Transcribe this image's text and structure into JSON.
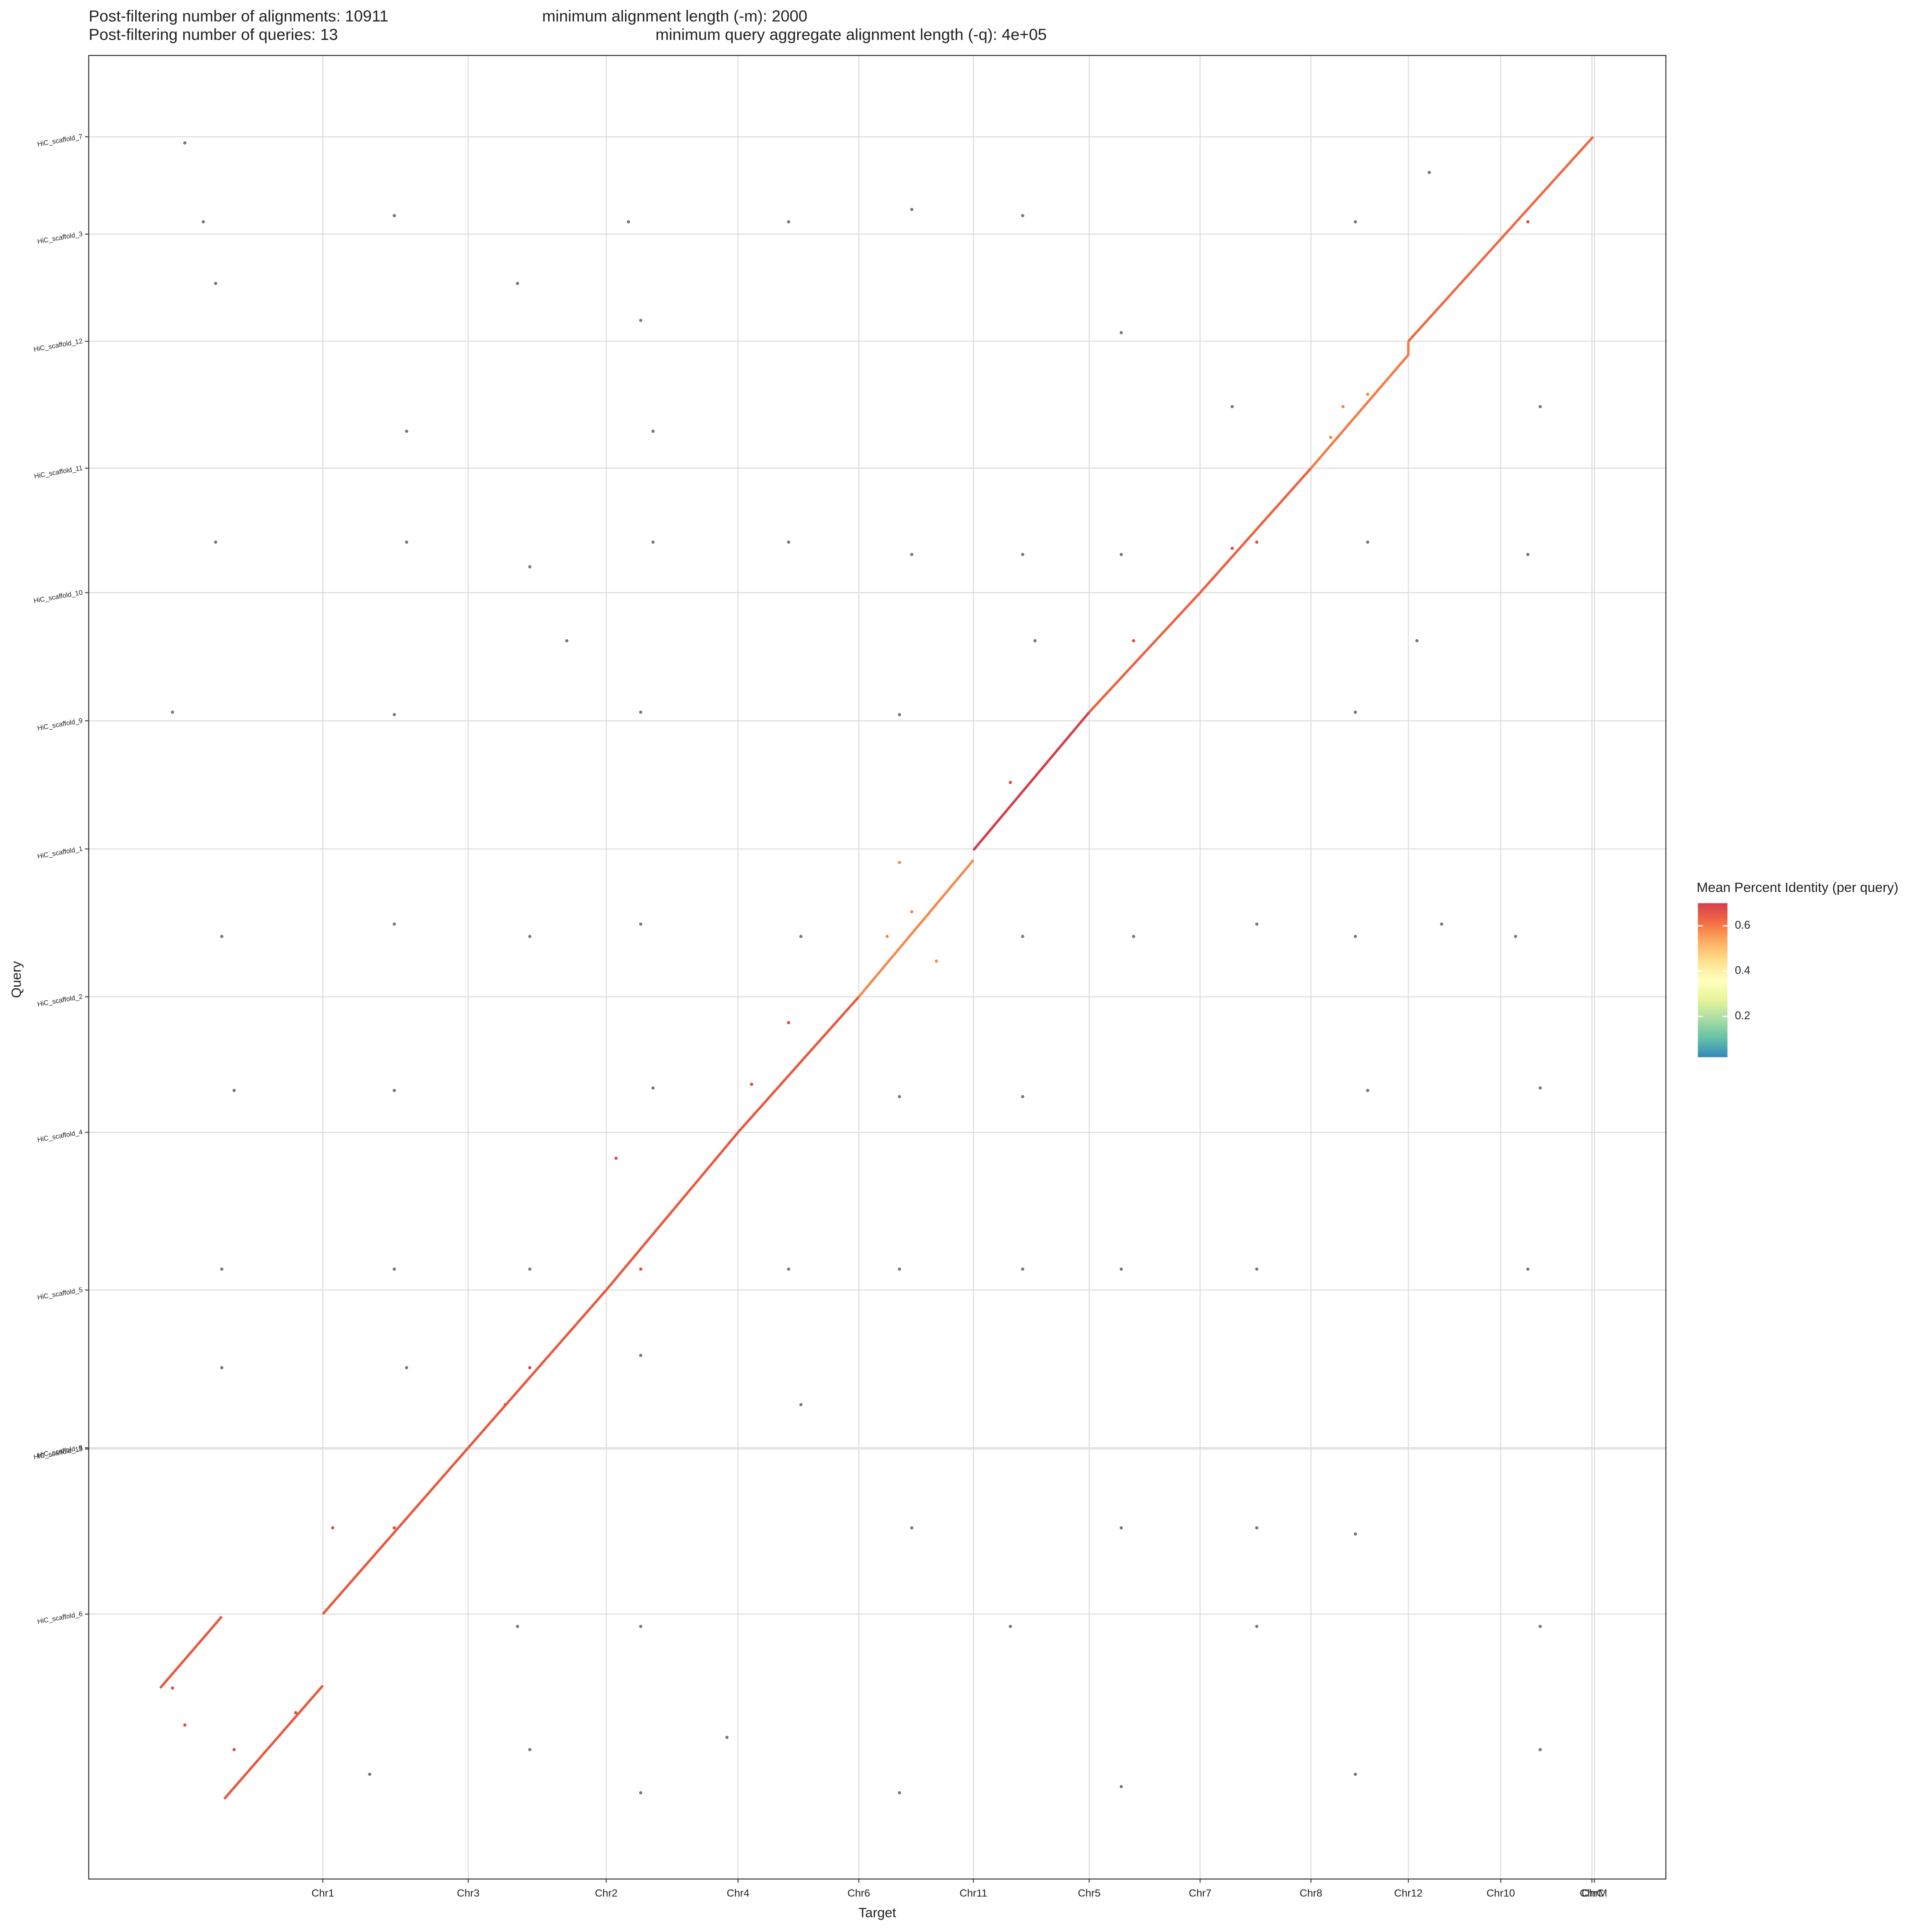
{
  "chart_data": {
    "type": "dotplot",
    "title": "Post-filtering number of alignments: 10911",
    "title2": "minimum alignment length (-m): 2000",
    "subtitle": "Post-filtering number of queries: 13",
    "subtitle2": "minimum query aggregate alignment length (-q): 4e+05",
    "xlabel": "Target",
    "ylabel": "Query",
    "xlim": [
      -58,
      1222
    ],
    "ylim": [
      -65,
      1415
    ],
    "grid": true,
    "xticks": [
      {
        "value": 132,
        "label": "Chr1"
      },
      {
        "value": 250,
        "label": "Chr3"
      },
      {
        "value": 362,
        "label": "Chr2"
      },
      {
        "value": 469,
        "label": "Chr4"
      },
      {
        "value": 567,
        "label": "Chr6"
      },
      {
        "value": 660,
        "label": "Chr11"
      },
      {
        "value": 754,
        "label": "Chr5"
      },
      {
        "value": 844,
        "label": "Chr7"
      },
      {
        "value": 934,
        "label": "Chr8"
      },
      {
        "value": 1013,
        "label": "Chr12"
      },
      {
        "value": 1088,
        "label": "Chr10"
      },
      {
        "value": 1162,
        "label": "ChrC"
      },
      {
        "value": 1164,
        "label": "ChrM"
      }
    ],
    "yticks": [
      {
        "value": 1349,
        "label": "HiC_scaffold_7"
      },
      {
        "value": 1270,
        "label": "HiC_scaffold_3"
      },
      {
        "value": 1183,
        "label": "HiC_scaffold_12"
      },
      {
        "value": 1080,
        "label": "HiC_scaffold_11"
      },
      {
        "value": 979,
        "label": "HiC_scaffold_10"
      },
      {
        "value": 875,
        "label": "HiC_scaffold_9"
      },
      {
        "value": 771,
        "label": "HiC_scaffold_1"
      },
      {
        "value": 651,
        "label": "HiC_scaffold_2"
      },
      {
        "value": 541,
        "label": "HiC_scaffold_4"
      },
      {
        "value": 413,
        "label": "HiC_scaffold_5"
      },
      {
        "value": 285,
        "label": "HiC_scaffold_8"
      },
      {
        "value": 284,
        "label": "HiC_scaffold_13"
      },
      {
        "value": 150,
        "label": "HiC_scaffold_6"
      }
    ],
    "lines": [
      {
        "color": "#e8593f",
        "x": [
          0,
          50,
          null,
          52,
          132,
          null,
          132,
          250,
          362,
          469,
          567
        ],
        "y": [
          90,
          148,
          null,
          0,
          92,
          null,
          150,
          285,
          413,
          541,
          651
        ]
      },
      {
        "color": "#f58a4d",
        "x": [
          567,
          660
        ],
        "y": [
          651,
          762
        ]
      },
      {
        "color": "#d33f4a",
        "x": [
          660,
          754
        ],
        "y": [
          770,
          882
        ]
      },
      {
        "color": "#ec6240",
        "x": [
          754,
          844,
          934
        ],
        "y": [
          882,
          979,
          1080
        ]
      },
      {
        "color": "#f47b48",
        "x": [
          934,
          1013,
          1013
        ],
        "y": [
          1080,
          1172,
          1183
        ]
      },
      {
        "color": "#ee6a44",
        "x": [
          1013,
          1163
        ],
        "y": [
          1183,
          1349
        ]
      }
    ],
    "points": [
      {
        "color": "#777777",
        "x": [
          20,
          35,
          45,
          190,
          200,
          290,
          380,
          390,
          400,
          510,
          610,
          700,
          780,
          870,
          970,
          1030,
          1120,
          45,
          200,
          300,
          400,
          510,
          610,
          700,
          780,
          980,
          1110,
          330,
          710,
          1020,
          10,
          190,
          390,
          600,
          970,
          50,
          190,
          300,
          390,
          520,
          700,
          790,
          890,
          970,
          1040,
          1100,
          60,
          190,
          400,
          600,
          700,
          980,
          1120,
          50,
          190,
          300,
          510,
          600,
          700,
          780,
          890,
          1110,
          50,
          200,
          390,
          520,
          610,
          780,
          890,
          970,
          290,
          390,
          690,
          890,
          1120,
          300,
          390,
          600,
          780,
          970,
          1120,
          460,
          170
        ],
        "y": [
          1344,
          1280,
          1230,
          1285,
          1110,
          1230,
          1280,
          1200,
          1110,
          1280,
          1290,
          1285,
          1190,
          1130,
          1280,
          1320,
          1130,
          1020,
          1020,
          1000,
          1020,
          1020,
          1010,
          1010,
          1010,
          1020,
          1010,
          940,
          940,
          940,
          882,
          880,
          882,
          880,
          882,
          700,
          710,
          700,
          710,
          700,
          700,
          700,
          710,
          700,
          710,
          700,
          575,
          575,
          577,
          570,
          570,
          575,
          577,
          430,
          430,
          430,
          430,
          430,
          430,
          430,
          430,
          430,
          350,
          350,
          360,
          320,
          220,
          220,
          220,
          215,
          140,
          140,
          140,
          140,
          140,
          40,
          5,
          5,
          10,
          20,
          40,
          50,
          20
        ]
      },
      {
        "color": "#f58a4d",
        "x": [
          960,
          980,
          950,
          600,
          590,
          630,
          610
        ],
        "y": [
          1130,
          1140,
          1105,
          760,
          700,
          680,
          720
        ]
      },
      {
        "color": "#e8473f",
        "x": [
          1110,
          870,
          890,
          790,
          690,
          510,
          480,
          390,
          370,
          300,
          280,
          190,
          140,
          10,
          20,
          60,
          110
        ],
        "y": [
          1280,
          1015,
          1020,
          940,
          825,
          630,
          580,
          430,
          520,
          350,
          320,
          220,
          220,
          90,
          60,
          40,
          70
        ]
      }
    ],
    "colorbar": {
      "title": "Mean Percent Identity (per query)",
      "lim": [
        0.02,
        0.7
      ],
      "ticks": [
        0.2,
        0.4,
        0.6
      ],
      "colors": [
        "#3288bd",
        "#66c2a5",
        "#abdda4",
        "#e6f598",
        "#ffffbf",
        "#fee08b",
        "#fdae61",
        "#f46d43",
        "#d53e4f"
      ]
    }
  }
}
